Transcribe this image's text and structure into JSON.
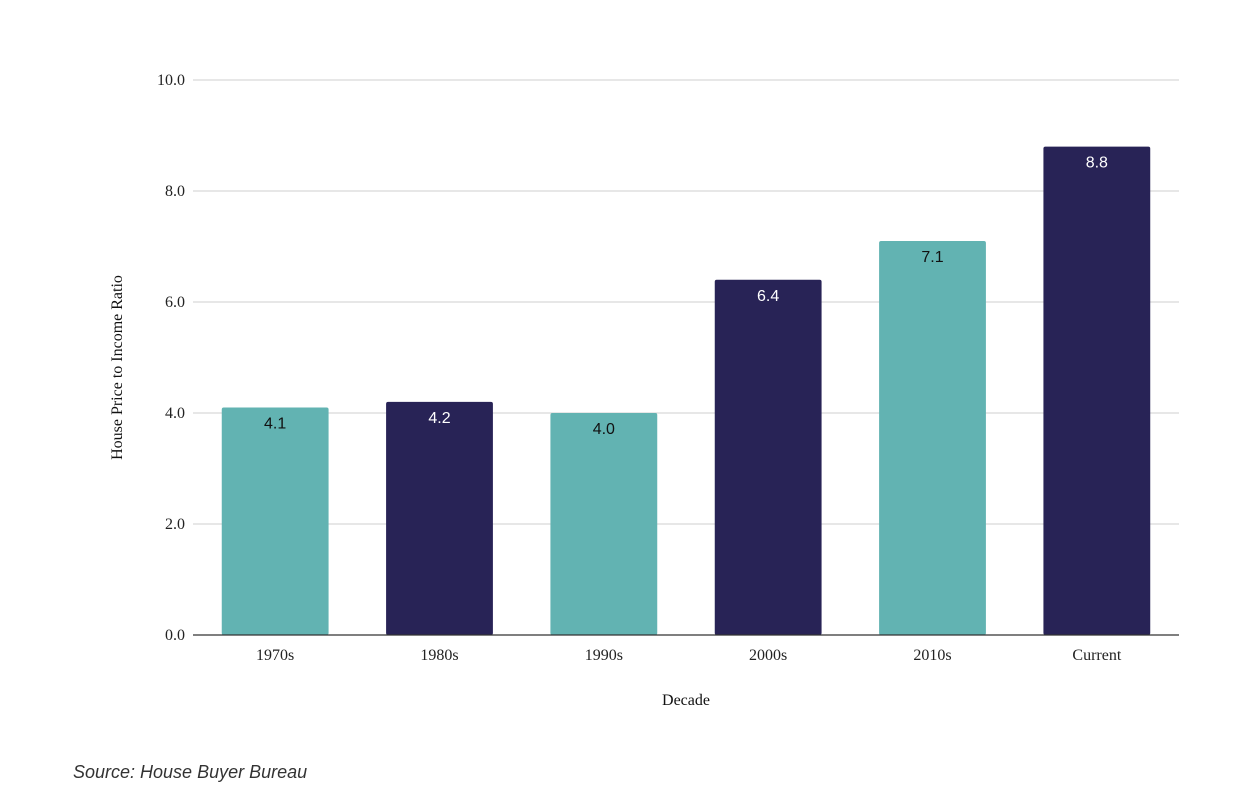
{
  "chart_data": {
    "type": "bar",
    "title": "",
    "xlabel": "Decade",
    "ylabel": "House Price to Income Ratio",
    "categories": [
      "1970s",
      "1980s",
      "1990s",
      "2000s",
      "2010s",
      "Current"
    ],
    "values": [
      4.1,
      4.2,
      4.0,
      6.4,
      7.1,
      8.8
    ],
    "value_labels": [
      "4.1",
      "4.2",
      "4.0",
      "6.4",
      "7.1",
      "8.8"
    ],
    "bar_colors": [
      "#62b3b2",
      "#282356",
      "#62b3b2",
      "#282356",
      "#62b3b2",
      "#282356"
    ],
    "label_colors": [
      "#111111",
      "#ffffff",
      "#111111",
      "#ffffff",
      "#111111",
      "#ffffff"
    ],
    "ylim": [
      0,
      10
    ],
    "yticks": [
      0,
      2,
      4,
      6,
      8,
      10
    ],
    "ytick_labels": [
      "0.0",
      "2.0",
      "4.0",
      "6.0",
      "8.0",
      "10.0"
    ],
    "grid": true,
    "legend": "none"
  },
  "source": "Source: House Buyer Bureau"
}
